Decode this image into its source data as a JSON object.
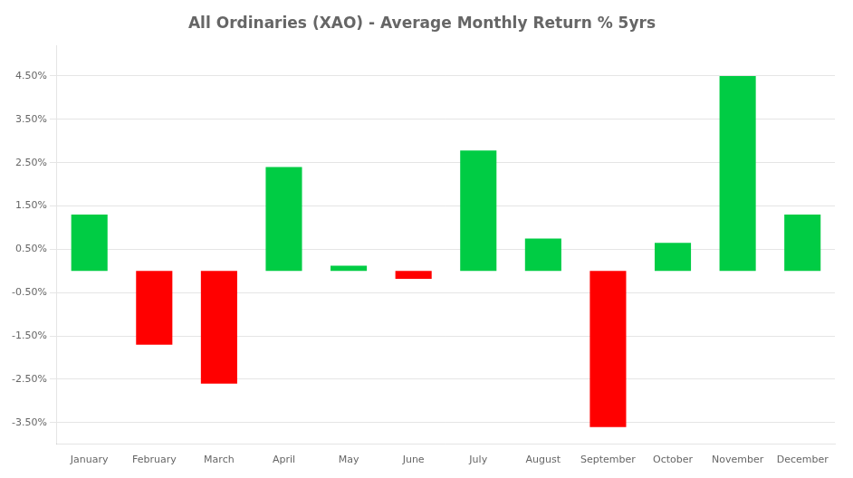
{
  "chart_data": {
    "type": "bar",
    "title": "All Ordinaries (XAO) - Average Monthly Return % 5yrs",
    "categories": [
      "January",
      "February",
      "March",
      "April",
      "May",
      "June",
      "July",
      "August",
      "September",
      "October",
      "November",
      "December"
    ],
    "values": [
      1.3,
      -1.7,
      -2.6,
      2.4,
      0.12,
      -0.18,
      2.78,
      0.75,
      -3.6,
      0.65,
      4.5,
      1.3
    ],
    "colors": [
      "#00cc44",
      "#ff0000",
      "#ff0000",
      "#00cc44",
      "#00cc44",
      "#ff0000",
      "#00cc44",
      "#00cc44",
      "#ff0000",
      "#00cc44",
      "#00cc44",
      "#00cc44"
    ],
    "ylim": [
      -4.0,
      5.2
    ],
    "yticks": [
      {
        "value": -3.5,
        "label": "-3.50%"
      },
      {
        "value": -2.5,
        "label": "-2.50%"
      },
      {
        "value": -1.5,
        "label": "-1.50%"
      },
      {
        "value": -0.5,
        "label": "-0.50%"
      },
      {
        "value": 0.5,
        "label": "0.50%"
      },
      {
        "value": 1.5,
        "label": "1.50%"
      },
      {
        "value": 2.5,
        "label": "2.50%"
      },
      {
        "value": 3.5,
        "label": "3.50%"
      },
      {
        "value": 4.5,
        "label": "4.50%"
      }
    ],
    "grid": true
  }
}
